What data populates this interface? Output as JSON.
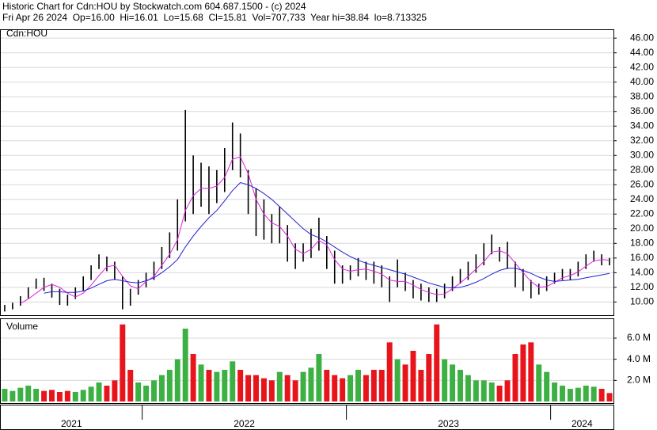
{
  "chart_data": {
    "type": "stock",
    "title": "Historic Chart for Cdn:HOU by Stockwatch.com 604.687.1500 - (c) 2024",
    "subtitle": "Fri Apr 26 2024  Op=16.00  Hi=16.01  Lo=15.68  Cl=15.81  Vol=707,733  Year hi=38.84  lo=8.713325",
    "symbol_label": "Cdn:HOU",
    "volume_label": "Volume",
    "categories": [
      "2021",
      null,
      null,
      null,
      null,
      null,
      null,
      null,
      null,
      null,
      null,
      null,
      null,
      null,
      null,
      null,
      null,
      null,
      "2022",
      null,
      null,
      null,
      null,
      null,
      null,
      null,
      null,
      null,
      null,
      null,
      null,
      null,
      null,
      null,
      null,
      null,
      null,
      null,
      null,
      null,
      null,
      null,
      null,
      null,
      "2023",
      null,
      null,
      null,
      null,
      null,
      null,
      null,
      null,
      null,
      null,
      null,
      null,
      null,
      null,
      null,
      null,
      null,
      null,
      null,
      null,
      null,
      null,
      null,
      null,
      null,
      "2024",
      null,
      null,
      null,
      null,
      null,
      null,
      null
    ],
    "high": [
      9.6,
      9.9,
      10.8,
      12.0,
      13.2,
      13.3,
      12.5,
      11.8,
      11.0,
      12.0,
      13.5,
      15.0,
      16.5,
      16.2,
      15.5,
      13.5,
      11.8,
      13.0,
      14.0,
      15.5,
      17.5,
      19.5,
      24.0,
      36.2,
      30.0,
      29.0,
      28.5,
      28.0,
      31.0,
      34.5,
      33.0,
      28.0,
      25.5,
      24.0,
      22.0,
      23.0,
      20.5,
      18.0,
      18.0,
      20.0,
      21.5,
      19.0,
      17.0,
      15.0,
      15.0,
      16.0,
      15.5,
      15.5,
      15.0,
      13.5,
      15.8,
      14.0,
      13.0,
      12.5,
      12.0,
      11.8,
      12.5,
      13.5,
      14.5,
      15.5,
      16.5,
      18.0,
      19.2,
      17.5,
      18.2,
      15.5,
      14.5,
      13.0,
      12.5,
      13.5,
      14.0,
      14.5,
      14.5,
      15.5,
      16.5,
      17.0,
      16.5,
      16.0
    ],
    "low": [
      8.7,
      9.0,
      9.5,
      10.5,
      11.8,
      11.5,
      10.6,
      9.6,
      9.5,
      10.4,
      11.5,
      13.0,
      14.5,
      14.2,
      13.0,
      9.0,
      9.5,
      11.0,
      12.0,
      13.0,
      14.5,
      16.0,
      17.0,
      21.0,
      22.0,
      23.0,
      22.0,
      23.5,
      25.0,
      28.0,
      27.0,
      22.0,
      19.0,
      18.5,
      18.0,
      18.0,
      15.5,
      14.5,
      15.5,
      16.0,
      17.0,
      14.5,
      12.5,
      12.5,
      13.0,
      13.5,
      13.0,
      12.5,
      12.0,
      10.0,
      12.0,
      11.5,
      10.5,
      10.2,
      10.0,
      10.0,
      10.5,
      11.5,
      12.5,
      13.0,
      14.0,
      15.0,
      16.5,
      15.5,
      14.5,
      12.0,
      11.5,
      10.5,
      11.0,
      11.5,
      12.5,
      13.0,
      13.0,
      13.5,
      14.5,
      15.5,
      15.0,
      15.0
    ],
    "ma_short": [
      null,
      null,
      9.8,
      10.4,
      11.2,
      12.0,
      12.4,
      12.0,
      11.2,
      10.7,
      11.2,
      12.3,
      13.6,
      14.8,
      15.0,
      13.5,
      12.2,
      11.8,
      12.8,
      13.5,
      15.0,
      16.5,
      18.5,
      22.5,
      24.5,
      25.5,
      25.5,
      25.8,
      27.0,
      29.5,
      29.8,
      27.5,
      24.0,
      22.0,
      20.8,
      20.3,
      19.0,
      17.2,
      16.6,
      17.2,
      18.4,
      17.8,
      15.8,
      14.5,
      14.2,
      14.4,
      14.5,
      14.2,
      13.8,
      13.0,
      12.8,
      12.8,
      12.3,
      11.7,
      11.3,
      11.0,
      11.1,
      11.8,
      12.6,
      13.5,
      14.5,
      15.5,
      16.8,
      17.0,
      16.6,
      15.3,
      14.0,
      12.8,
      12.0,
      12.1,
      12.7,
      13.3,
      13.6,
      14.1,
      14.9,
      15.6,
      15.8,
      15.7
    ],
    "ma_long": [
      null,
      null,
      null,
      null,
      null,
      11.2,
      11.4,
      11.4,
      11.3,
      11.3,
      11.5,
      11.9,
      12.4,
      12.9,
      13.1,
      12.9,
      12.7,
      12.6,
      12.9,
      13.3,
      14.0,
      14.8,
      15.8,
      17.5,
      19.0,
      20.3,
      21.5,
      22.5,
      23.8,
      25.2,
      26.3,
      26.0,
      25.5,
      24.8,
      24.0,
      23.0,
      22.0,
      21.0,
      20.0,
      19.2,
      18.8,
      18.2,
      17.5,
      16.8,
      16.2,
      15.7,
      15.3,
      15.0,
      14.7,
      14.4,
      14.1,
      13.8,
      13.4,
      13.0,
      12.6,
      12.3,
      12.0,
      11.9,
      12.0,
      12.3,
      12.7,
      13.2,
      13.8,
      14.3,
      14.6,
      14.6,
      14.3,
      13.9,
      13.4,
      13.0,
      12.8,
      12.9,
      13.0,
      13.1,
      13.3,
      13.5,
      13.7,
      13.9
    ],
    "volume": [
      1.2,
      1.0,
      1.3,
      1.5,
      1.2,
      1.0,
      1.1,
      0.9,
      1.0,
      0.9,
      1.1,
      1.4,
      1.8,
      1.5,
      2.0,
      7.3,
      3.0,
      1.8,
      1.5,
      2.0,
      2.5,
      3.0,
      4.0,
      6.9,
      4.5,
      3.5,
      3.0,
      2.8,
      3.0,
      3.8,
      3.0,
      2.5,
      2.5,
      2.2,
      2.0,
      2.8,
      2.5,
      2.0,
      2.8,
      3.2,
      4.5,
      3.0,
      2.5,
      2.2,
      2.5,
      3.0,
      2.5,
      3.0,
      3.0,
      5.6,
      4.0,
      3.5,
      4.8,
      3.0,
      4.5,
      7.3,
      4.0,
      3.5,
      3.0,
      2.5,
      2.0,
      2.0,
      1.8,
      1.5,
      2.0,
      4.5,
      5.4,
      5.6,
      3.5,
      2.8,
      1.8,
      1.5,
      1.2,
      1.3,
      1.5,
      1.4,
      1.2,
      0.8
    ],
    "bar_color": "#000000",
    "ma_short_color": "#e020e0",
    "ma_long_color": "#2020d0",
    "volume_up_color": "#3cb043",
    "volume_down_color": "#e8141b",
    "ylim": [
      8.2,
      47.1
    ],
    "yticks": [
      {
        "value": 10,
        "label": "10.00"
      },
      {
        "value": 12,
        "label": "12.00"
      },
      {
        "value": 14,
        "label": "14.00"
      },
      {
        "value": 16,
        "label": "16.00"
      },
      {
        "value": 18,
        "label": "18.00"
      },
      {
        "value": 20,
        "label": "20.00"
      },
      {
        "value": 22,
        "label": "22.00"
      },
      {
        "value": 24,
        "label": "24.00"
      },
      {
        "value": 26,
        "label": "26.00"
      },
      {
        "value": 28,
        "label": "28.00"
      },
      {
        "value": 30,
        "label": "30.00"
      },
      {
        "value": 32,
        "label": "32.00"
      },
      {
        "value": 34,
        "label": "34.00"
      },
      {
        "value": 36,
        "label": "36.00"
      },
      {
        "value": 38,
        "label": "38.00"
      },
      {
        "value": 40,
        "label": "40.00"
      },
      {
        "value": 42,
        "label": "42.00"
      },
      {
        "value": 44,
        "label": "44.00"
      },
      {
        "value": 46,
        "label": "46.00"
      }
    ],
    "y2lim": [
      0,
      7.8
    ],
    "y2ticks": [
      {
        "value": 2,
        "label": "2.0 M"
      },
      {
        "value": 4,
        "label": "4.0 M"
      },
      {
        "value": 6,
        "label": "6.0 M"
      }
    ],
    "grid": true
  }
}
